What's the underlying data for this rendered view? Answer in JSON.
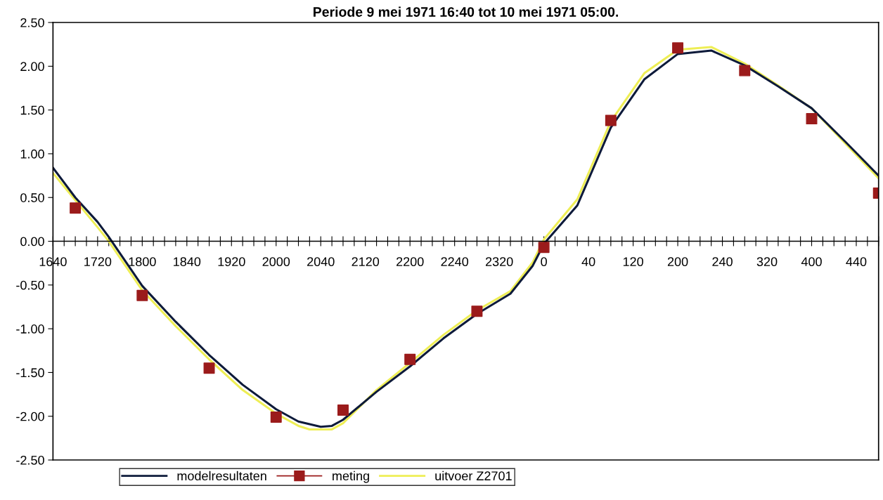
{
  "chart_data": {
    "type": "line",
    "title": "Periode 9 mei 1971 16:40 tot 10 mei 1971 05:00.",
    "categories": [
      "1640",
      null,
      null,
      null,
      "1720",
      null,
      null,
      null,
      "1800",
      null,
      null,
      null,
      "1840",
      null,
      null,
      null,
      "1920",
      null,
      null,
      null,
      "2000",
      null,
      null,
      null,
      "2040",
      null,
      null,
      null,
      "2120",
      null,
      null,
      null,
      "2200",
      null,
      null,
      null,
      "2240",
      null,
      null,
      null,
      "2320",
      null,
      null,
      null,
      "0",
      null,
      null,
      null,
      "40",
      null,
      null,
      null,
      "120",
      null,
      null,
      null,
      "200",
      null,
      null,
      null,
      "240",
      null,
      null,
      null,
      "320",
      null,
      null,
      null,
      "400",
      null,
      null,
      null,
      "440",
      null,
      null
    ],
    "ylim": [
      -2.5,
      2.5
    ],
    "yticks": [
      {
        "value": -2.5,
        "label": "-2.50"
      },
      {
        "value": -2.0,
        "label": "-2.00"
      },
      {
        "value": -1.5,
        "label": "-1.50"
      },
      {
        "value": -1.0,
        "label": "-1.00"
      },
      {
        "value": -0.5,
        "label": "-0.50"
      },
      {
        "value": 0.0,
        "label": "0.00"
      },
      {
        "value": 0.5,
        "label": "0.50"
      },
      {
        "value": 1.0,
        "label": "1.00"
      },
      {
        "value": 1.5,
        "label": "1.50"
      },
      {
        "value": 2.0,
        "label": "2.00"
      },
      {
        "value": 2.5,
        "label": "2.50"
      }
    ],
    "grid": false,
    "legend": "bottom",
    "series": [
      {
        "name": "modelresultaten",
        "color": "#0d1a3a",
        "values": [
          0.84,
          null,
          0.5,
          null,
          0.22,
          0.05,
          null,
          null,
          -0.51,
          null,
          null,
          -0.92,
          null,
          null,
          -1.3,
          null,
          null,
          -1.64,
          null,
          null,
          -1.92,
          null,
          -2.06,
          null,
          -2.12,
          -2.11,
          -2.04,
          null,
          null,
          -1.72,
          null,
          null,
          -1.43,
          null,
          null,
          -1.11,
          null,
          null,
          -0.83,
          null,
          null,
          -0.6,
          null,
          -0.28,
          -0.03,
          null,
          null,
          0.41,
          null,
          null,
          1.3,
          null,
          null,
          1.85,
          null,
          null,
          2.14,
          null,
          null,
          2.18,
          null,
          null,
          2.01,
          null,
          null,
          1.77,
          null,
          null,
          1.52,
          null,
          null,
          1.14,
          null,
          null,
          0.75
        ]
      },
      {
        "name": "meting",
        "type": "scatter",
        "marker": "square",
        "color": "#9b1b1b",
        "values": [
          null,
          null,
          0.38,
          null,
          null,
          null,
          null,
          null,
          -0.62,
          null,
          null,
          null,
          null,
          null,
          -1.45,
          null,
          null,
          null,
          null,
          null,
          -2.01,
          null,
          null,
          null,
          null,
          null,
          -1.93,
          null,
          null,
          null,
          null,
          null,
          -1.35,
          null,
          null,
          null,
          null,
          null,
          -0.8,
          null,
          null,
          null,
          null,
          null,
          -0.07,
          null,
          null,
          null,
          null,
          null,
          1.38,
          null,
          null,
          null,
          null,
          null,
          2.21,
          null,
          null,
          null,
          null,
          null,
          1.95,
          null,
          null,
          null,
          null,
          null,
          1.4,
          null,
          null,
          null,
          null,
          null,
          0.55
        ]
      },
      {
        "name": "uitvoer Z2701",
        "color": "#eeee55",
        "values": [
          0.78,
          null,
          0.47,
          null,
          0.16,
          0.0,
          null,
          null,
          -0.56,
          null,
          null,
          -0.97,
          null,
          null,
          -1.35,
          null,
          null,
          -1.7,
          null,
          null,
          -1.97,
          null,
          -2.11,
          -2.15,
          null,
          -2.15,
          -2.08,
          null,
          null,
          -1.7,
          null,
          null,
          -1.39,
          null,
          null,
          -1.07,
          null,
          null,
          -0.79,
          null,
          null,
          -0.57,
          null,
          -0.24,
          0.02,
          null,
          null,
          0.48,
          null,
          null,
          1.37,
          null,
          null,
          1.92,
          null,
          null,
          2.19,
          null,
          null,
          2.22,
          null,
          null,
          2.03,
          null,
          null,
          1.78,
          null,
          null,
          1.52,
          null,
          null,
          1.12,
          null,
          null,
          0.72
        ]
      }
    ]
  }
}
